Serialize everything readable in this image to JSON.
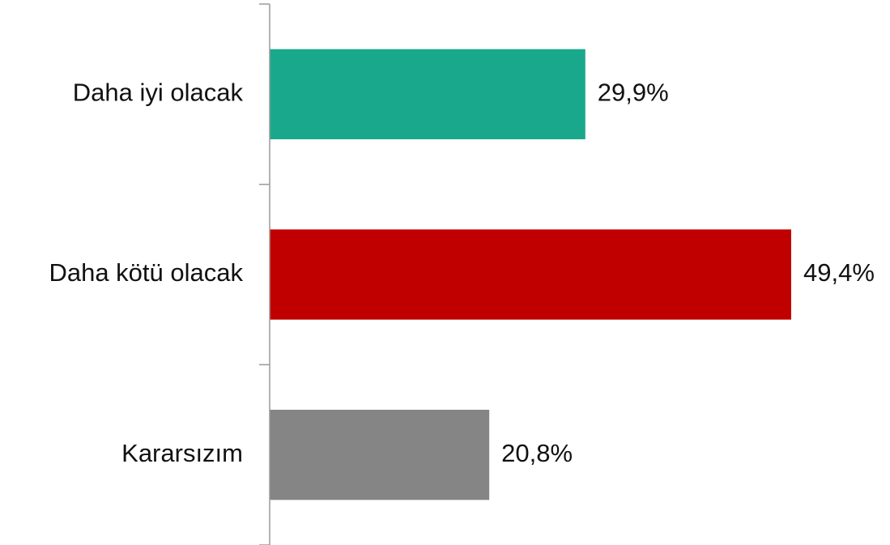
{
  "chart_data": {
    "type": "barh",
    "categories": [
      "Daha iyi olacak",
      "Daha kötü olacak",
      "Kararsızım"
    ],
    "values": [
      29.9,
      49.4,
      20.8
    ],
    "value_labels": [
      "29,9%",
      "49,4%",
      "20,8%"
    ],
    "colors": [
      "#1aa88c",
      "#c00000",
      "#858585"
    ]
  }
}
